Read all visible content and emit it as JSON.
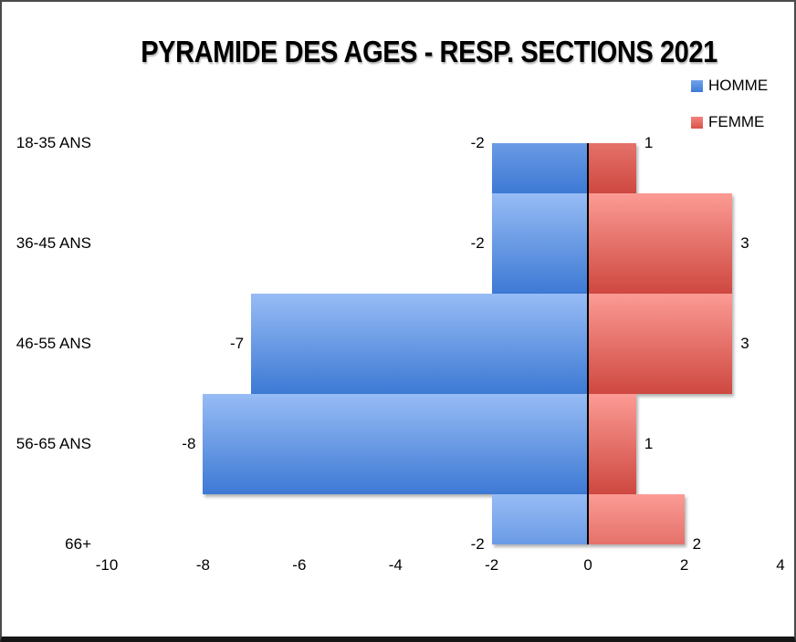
{
  "frame": {
    "background": "#FFFFFF",
    "border_color": "#4A4A4A",
    "border_bottom_color": "#161616"
  },
  "chart_data": {
    "type": "bar",
    "variant": "population-pyramid-horizontal",
    "title": "PYRAMIDE DES AGES - RESP. SECTIONS 2021",
    "categories": [
      "18-35 ANS",
      "36-45 ANS",
      "46-55 ANS",
      "56-65 ANS",
      "66+"
    ],
    "series": [
      {
        "name": "HOMME",
        "values": [
          -2,
          -2,
          -7,
          -8,
          -2
        ],
        "color_light": "#97BCF5",
        "color_dark": "#3D79D4"
      },
      {
        "name": "FEMME",
        "values": [
          1,
          3,
          3,
          1,
          2
        ],
        "color_light": "#FB9B94",
        "color_dark": "#CE4840"
      }
    ],
    "data_labels": [
      "-2",
      "1",
      "-2",
      "3",
      "-7",
      "3",
      "-8",
      "1",
      "-2",
      "2"
    ],
    "xlim": [
      -10,
      4
    ],
    "xticks": [
      -10,
      -8,
      -6,
      -4,
      -2,
      0,
      2,
      4
    ],
    "xtick_labels": [
      "-10",
      "-8",
      "-6",
      "-4",
      "-2",
      "0",
      "2",
      "4"
    ],
    "grid": "off",
    "zero_axis_line_color": "#000000",
    "legend_position": "top-right",
    "gap_width": 0,
    "first_last_bands_clipped": true
  },
  "legend": {
    "items": [
      {
        "label": "HOMME",
        "swatch_light": "#6FA3EC",
        "swatch_dark": "#3E7AD6"
      },
      {
        "label": "FEMME",
        "swatch_light": "#F2837D",
        "swatch_dark": "#D9534A"
      }
    ]
  }
}
